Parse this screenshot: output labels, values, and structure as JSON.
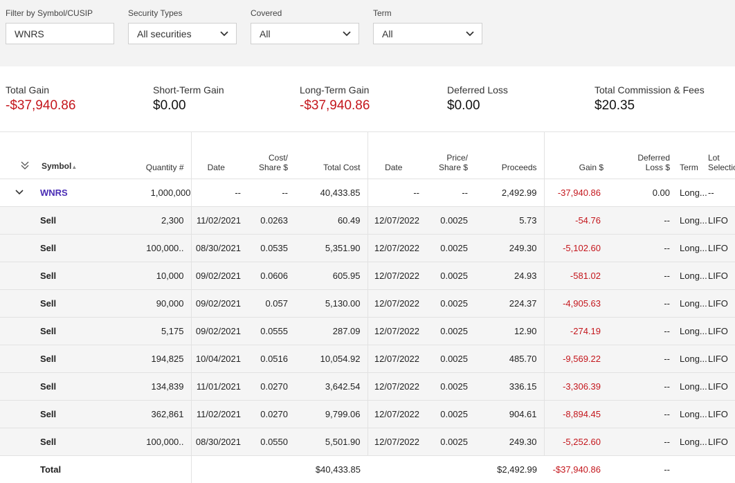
{
  "filters": {
    "symbol": {
      "label": "Filter by Symbol/CUSIP",
      "value": "WNRS"
    },
    "security_types": {
      "label": "Security Types",
      "value": "All securities"
    },
    "covered": {
      "label": "Covered",
      "value": "All"
    },
    "term": {
      "label": "Term",
      "value": "All"
    }
  },
  "summary": {
    "total_gain": {
      "title": "Total Gain",
      "value": "-$37,940.86"
    },
    "short_term": {
      "title": "Short-Term Gain",
      "value": "$0.00"
    },
    "long_term": {
      "title": "Long-Term Gain",
      "value": "-$37,940.86"
    },
    "deferred_loss": {
      "title": "Deferred Loss",
      "value": "$0.00"
    },
    "commission": {
      "title": "Total Commission & Fees",
      "value": "$20.35"
    }
  },
  "table": {
    "headers": {
      "symbol": "Symbol",
      "quantity": "Quantity #",
      "acq_date": "Date",
      "cost_share_1": "Cost/",
      "cost_share_2": "Share $",
      "total_cost": "Total Cost",
      "sold_date": "Date",
      "price_share_1": "Price/",
      "price_share_2": "Share $",
      "proceeds": "Proceeds",
      "gain": "Gain $",
      "deferred_1": "Deferred",
      "deferred_2": "Loss $",
      "term": "Term",
      "lot_1": "Lot",
      "lot_2": "Selection"
    },
    "parent": {
      "symbol": "WNRS",
      "quantity": "1,000,000",
      "acq_date": "--",
      "cost_share": "--",
      "total_cost": "40,433.85",
      "sold_date": "--",
      "price_share": "--",
      "proceeds": "2,492.99",
      "gain": "-37,940.86",
      "deferred": "0.00",
      "term": "Long...",
      "lot": "--"
    },
    "rows": [
      {
        "type": "Sell",
        "quantity": "2,300",
        "acq_date": "11/02/2021",
        "cost_share": "0.0263",
        "total_cost": "60.49",
        "sold_date": "12/07/2022",
        "price_share": "0.0025",
        "proceeds": "5.73",
        "gain": "-54.76",
        "deferred": "--",
        "term": "Long...",
        "lot": "LIFO"
      },
      {
        "type": "Sell",
        "quantity": "100,000..",
        "acq_date": "08/30/2021",
        "cost_share": "0.0535",
        "total_cost": "5,351.90",
        "sold_date": "12/07/2022",
        "price_share": "0.0025",
        "proceeds": "249.30",
        "gain": "-5,102.60",
        "deferred": "--",
        "term": "Long...",
        "lot": "LIFO"
      },
      {
        "type": "Sell",
        "quantity": "10,000",
        "acq_date": "09/02/2021",
        "cost_share": "0.0606",
        "total_cost": "605.95",
        "sold_date": "12/07/2022",
        "price_share": "0.0025",
        "proceeds": "24.93",
        "gain": "-581.02",
        "deferred": "--",
        "term": "Long...",
        "lot": "LIFO"
      },
      {
        "type": "Sell",
        "quantity": "90,000",
        "acq_date": "09/02/2021",
        "cost_share": "0.057",
        "total_cost": "5,130.00",
        "sold_date": "12/07/2022",
        "price_share": "0.0025",
        "proceeds": "224.37",
        "gain": "-4,905.63",
        "deferred": "--",
        "term": "Long...",
        "lot": "LIFO"
      },
      {
        "type": "Sell",
        "quantity": "5,175",
        "acq_date": "09/02/2021",
        "cost_share": "0.0555",
        "total_cost": "287.09",
        "sold_date": "12/07/2022",
        "price_share": "0.0025",
        "proceeds": "12.90",
        "gain": "-274.19",
        "deferred": "--",
        "term": "Long...",
        "lot": "LIFO"
      },
      {
        "type": "Sell",
        "quantity": "194,825",
        "acq_date": "10/04/2021",
        "cost_share": "0.0516",
        "total_cost": "10,054.92",
        "sold_date": "12/07/2022",
        "price_share": "0.0025",
        "proceeds": "485.70",
        "gain": "-9,569.22",
        "deferred": "--",
        "term": "Long...",
        "lot": "LIFO"
      },
      {
        "type": "Sell",
        "quantity": "134,839",
        "acq_date": "11/01/2021",
        "cost_share": "0.0270",
        "total_cost": "3,642.54",
        "sold_date": "12/07/2022",
        "price_share": "0.0025",
        "proceeds": "336.15",
        "gain": "-3,306.39",
        "deferred": "--",
        "term": "Long...",
        "lot": "LIFO"
      },
      {
        "type": "Sell",
        "quantity": "362,861",
        "acq_date": "11/02/2021",
        "cost_share": "0.0270",
        "total_cost": "9,799.06",
        "sold_date": "12/07/2022",
        "price_share": "0.0025",
        "proceeds": "904.61",
        "gain": "-8,894.45",
        "deferred": "--",
        "term": "Long...",
        "lot": "LIFO"
      },
      {
        "type": "Sell",
        "quantity": "100,000..",
        "acq_date": "08/30/2021",
        "cost_share": "0.0550",
        "total_cost": "5,501.90",
        "sold_date": "12/07/2022",
        "price_share": "0.0025",
        "proceeds": "249.30",
        "gain": "-5,252.60",
        "deferred": "--",
        "term": "Long...",
        "lot": "LIFO"
      }
    ],
    "total": {
      "label": "Total",
      "total_cost": "$40,433.85",
      "proceeds": "$2,492.99",
      "gain": "-$37,940.86",
      "deferred": "--"
    }
  },
  "icons": {
    "collapse_all": "double-chevron-down-icon",
    "expand_row": "chevron-down-icon",
    "sort": "sort-up-icon",
    "dropdown": "chevron-down-icon"
  },
  "colors": {
    "negative": "#c4161c",
    "link": "#4a2db5",
    "filter_bg": "#f3f3f3",
    "row_bg": "#f5f5f5"
  }
}
